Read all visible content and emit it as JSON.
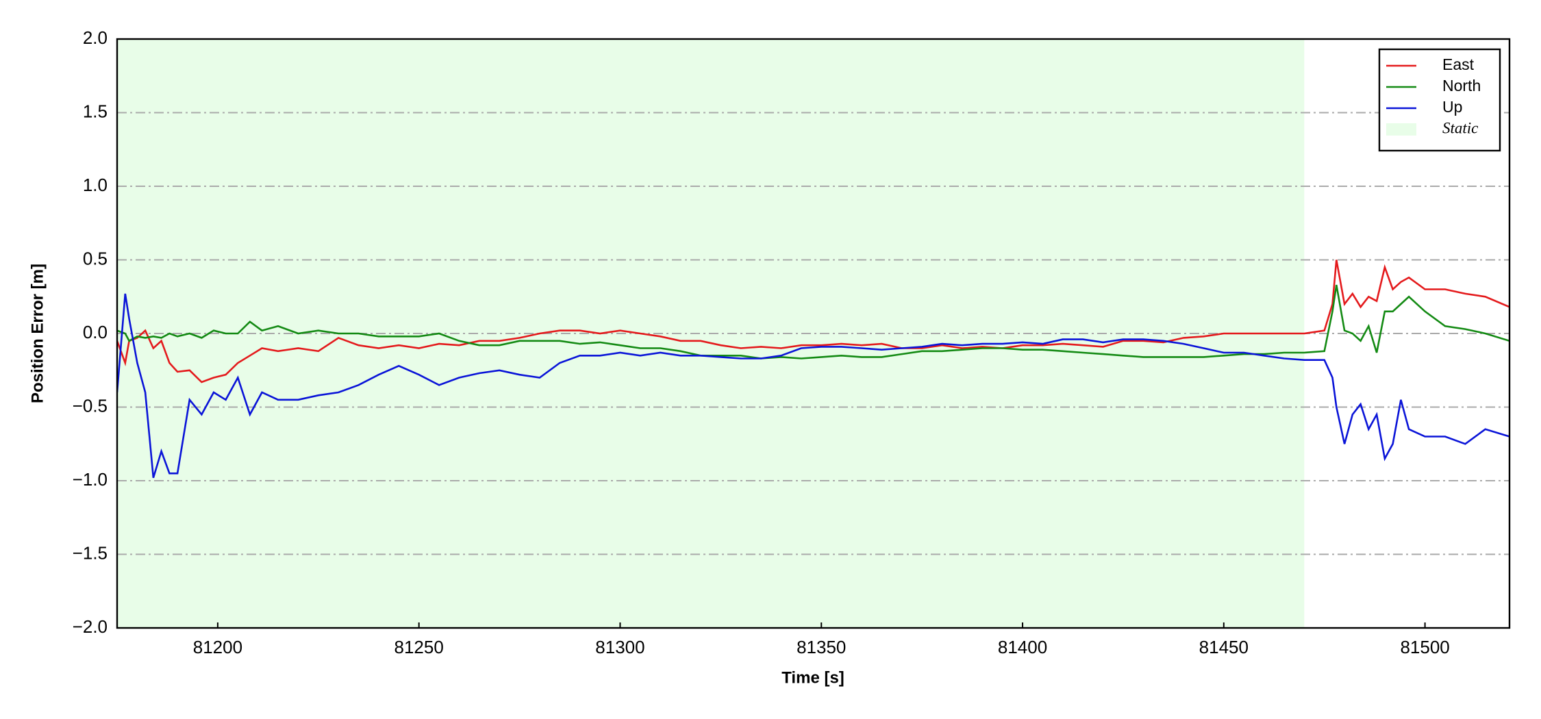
{
  "chart_data": {
    "type": "line",
    "xlabel": "Time [s]",
    "ylabel": "Position Error [m]",
    "x": [
      81175,
      81177,
      81178,
      81180,
      81182,
      81184,
      81186,
      81188,
      81190,
      81193,
      81196,
      81199,
      81202,
      81205,
      81208,
      81211,
      81215,
      81220,
      81225,
      81230,
      81235,
      81240,
      81245,
      81250,
      81255,
      81260,
      81265,
      81270,
      81275,
      81280,
      81285,
      81290,
      81295,
      81300,
      81305,
      81310,
      81315,
      81320,
      81325,
      81330,
      81335,
      81340,
      81345,
      81350,
      81355,
      81360,
      81365,
      81370,
      81375,
      81380,
      81385,
      81390,
      81395,
      81400,
      81405,
      81410,
      81415,
      81420,
      81425,
      81430,
      81435,
      81440,
      81445,
      81450,
      81455,
      81460,
      81465,
      81470,
      81475,
      81477,
      81478,
      81480,
      81482,
      81484,
      81486,
      81488,
      81490,
      81492,
      81494,
      81496,
      81500,
      81505,
      81510,
      81515,
      81521
    ],
    "series": [
      {
        "name": "East",
        "color": "#e41a1c",
        "values": [
          -0.05,
          -0.2,
          -0.05,
          -0.03,
          0.02,
          -0.1,
          -0.05,
          -0.2,
          -0.26,
          -0.25,
          -0.33,
          -0.3,
          -0.28,
          -0.2,
          -0.15,
          -0.1,
          -0.12,
          -0.1,
          -0.12,
          -0.03,
          -0.08,
          -0.1,
          -0.08,
          -0.1,
          -0.07,
          -0.08,
          -0.05,
          -0.05,
          -0.03,
          0.0,
          0.02,
          0.02,
          0.0,
          0.02,
          0.0,
          -0.02,
          -0.05,
          -0.05,
          -0.08,
          -0.1,
          -0.09,
          -0.1,
          -0.08,
          -0.08,
          -0.07,
          -0.08,
          -0.07,
          -0.1,
          -0.1,
          -0.08,
          -0.1,
          -0.09,
          -0.1,
          -0.08,
          -0.08,
          -0.07,
          -0.08,
          -0.09,
          -0.05,
          -0.05,
          -0.06,
          -0.03,
          -0.02,
          0.0,
          0.0,
          0.0,
          0.0,
          0.0,
          0.02,
          0.2,
          0.5,
          0.2,
          0.27,
          0.18,
          0.25,
          0.22,
          0.45,
          0.3,
          0.35,
          0.38,
          0.3,
          0.3,
          0.27,
          0.25,
          0.18
        ]
      },
      {
        "name": "North",
        "color": "#138a13",
        "values": [
          0.02,
          0.0,
          -0.05,
          -0.02,
          -0.03,
          -0.02,
          -0.03,
          0.0,
          -0.02,
          0.0,
          -0.03,
          0.02,
          0.0,
          0.0,
          0.08,
          0.02,
          0.05,
          0.0,
          0.02,
          0.0,
          0.0,
          -0.02,
          -0.02,
          -0.02,
          0.0,
          -0.05,
          -0.08,
          -0.08,
          -0.05,
          -0.05,
          -0.05,
          -0.07,
          -0.06,
          -0.08,
          -0.1,
          -0.1,
          -0.12,
          -0.15,
          -0.15,
          -0.15,
          -0.17,
          -0.16,
          -0.17,
          -0.16,
          -0.15,
          -0.16,
          -0.16,
          -0.14,
          -0.12,
          -0.12,
          -0.11,
          -0.1,
          -0.1,
          -0.11,
          -0.11,
          -0.12,
          -0.13,
          -0.14,
          -0.15,
          -0.16,
          -0.16,
          -0.16,
          -0.16,
          -0.15,
          -0.14,
          -0.14,
          -0.13,
          -0.13,
          -0.12,
          0.15,
          0.33,
          0.02,
          0.0,
          -0.05,
          0.05,
          -0.13,
          0.15,
          0.15,
          0.2,
          0.25,
          0.15,
          0.05,
          0.03,
          0.0,
          -0.05
        ]
      },
      {
        "name": "Up",
        "color": "#0a14d8",
        "values": [
          -0.4,
          0.27,
          0.1,
          -0.2,
          -0.4,
          -0.98,
          -0.8,
          -0.95,
          -0.95,
          -0.45,
          -0.55,
          -0.4,
          -0.45,
          -0.3,
          -0.55,
          -0.4,
          -0.45,
          -0.45,
          -0.42,
          -0.4,
          -0.35,
          -0.28,
          -0.22,
          -0.28,
          -0.35,
          -0.3,
          -0.27,
          -0.25,
          -0.28,
          -0.3,
          -0.2,
          -0.15,
          -0.15,
          -0.13,
          -0.15,
          -0.13,
          -0.15,
          -0.15,
          -0.16,
          -0.17,
          -0.17,
          -0.15,
          -0.1,
          -0.09,
          -0.09,
          -0.1,
          -0.11,
          -0.1,
          -0.09,
          -0.07,
          -0.08,
          -0.07,
          -0.07,
          -0.06,
          -0.07,
          -0.04,
          -0.04,
          -0.06,
          -0.04,
          -0.04,
          -0.05,
          -0.07,
          -0.1,
          -0.13,
          -0.13,
          -0.15,
          -0.17,
          -0.18,
          -0.18,
          -0.3,
          -0.5,
          -0.75,
          -0.55,
          -0.48,
          -0.65,
          -0.55,
          -0.85,
          -0.75,
          -0.45,
          -0.65,
          -0.7,
          -0.7,
          -0.75,
          -0.65,
          -0.7
        ]
      }
    ],
    "spans": [
      {
        "name": "Static",
        "color": "#e8fde8",
        "start": 81175,
        "end": 81470
      }
    ],
    "xlim": [
      81175,
      81521
    ],
    "xticks": [
      81200,
      81250,
      81300,
      81350,
      81400,
      81450,
      81500
    ],
    "ylim": [
      -2.0,
      2.0
    ],
    "yticks": [
      {
        "value": -2.0,
        "label": "−2.0"
      },
      {
        "value": -1.5,
        "label": "−1.5"
      },
      {
        "value": -1.0,
        "label": "−1.0"
      },
      {
        "value": -0.5,
        "label": "−0.5"
      },
      {
        "value": 0,
        "label": "0.0"
      },
      {
        "value": 0.5,
        "label": "0.5"
      },
      {
        "value": 1.0,
        "label": "1.0"
      },
      {
        "value": 1.5,
        "label": "1.5"
      },
      {
        "value": 2.0,
        "label": "2.0"
      }
    ],
    "grid": true,
    "legend": "upper right"
  }
}
